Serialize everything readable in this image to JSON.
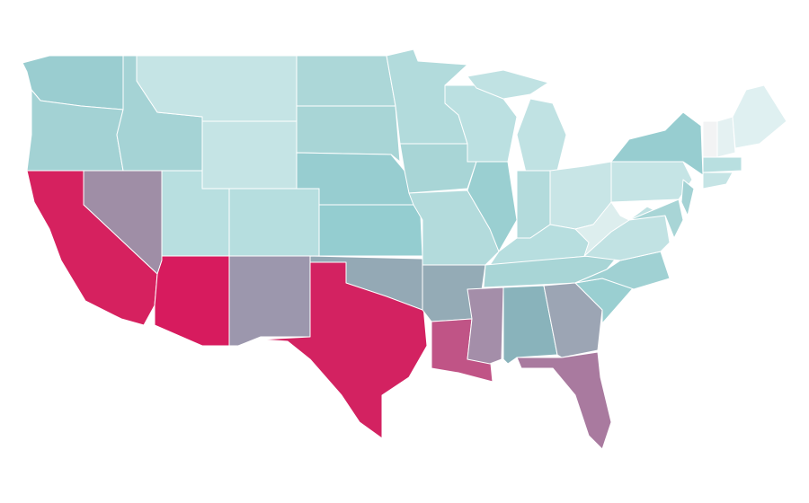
{
  "regions": [
    {
      "color": "#9acdd0"
    },
    {
      "color": "#a3d2d4"
    },
    {
      "color": "#a5d3d5"
    },
    {
      "color": "#c5e4e5"
    },
    {
      "color": "#c5e4e5"
    },
    {
      "color": "#acd7d8"
    },
    {
      "color": "#a8d5d6"
    },
    {
      "color": "#97cdd0"
    },
    {
      "color": "#b6dedf"
    },
    {
      "color": "#b8dfe0"
    },
    {
      "color": "#9f8ea6"
    },
    {
      "color": "#d6215f"
    },
    {
      "color": "#d71b5e"
    },
    {
      "color": "#9c97ad"
    },
    {
      "color": "#d32261"
    },
    {
      "color": "#94a9b5"
    },
    {
      "color": "#94cdd0"
    },
    {
      "color": "#b2dbdc"
    },
    {
      "color": "#a8d5d6"
    },
    {
      "color": "#b3dbdc"
    },
    {
      "color": "#94abb6"
    },
    {
      "color": "#c05486"
    },
    {
      "color": "#bbe0e1"
    },
    {
      "color": "#9acfd1"
    },
    {
      "color": "#c0e2e3"
    },
    {
      "color": "#c0e2e3"
    },
    {
      "color": "#b3dbdc"
    },
    {
      "color": "#c8e5e6"
    },
    {
      "color": "#b7dedf"
    },
    {
      "color": "#a8d5d6"
    },
    {
      "color": "#a48ea9"
    },
    {
      "color": "#89b3bb"
    },
    {
      "color": "#9ca5b4"
    },
    {
      "color": "#a97a9f"
    },
    {
      "color": "#9acfd1"
    },
    {
      "color": "#a0d1d3"
    },
    {
      "color": "#c1e2e3"
    },
    {
      "color": "#ddeeee"
    },
    {
      "color": "#c5e4e5"
    },
    {
      "color": "#97cdd0"
    },
    {
      "color": "#a8d5d6"
    },
    {
      "color": "#a3d2d4"
    },
    {
      "color": "#f2f3f4"
    },
    {
      "color": "#e4f1f2"
    },
    {
      "color": "#dff0f1"
    },
    {
      "color": "#b8dfe0"
    },
    {
      "color": "#c5e4e5"
    }
  ]
}
